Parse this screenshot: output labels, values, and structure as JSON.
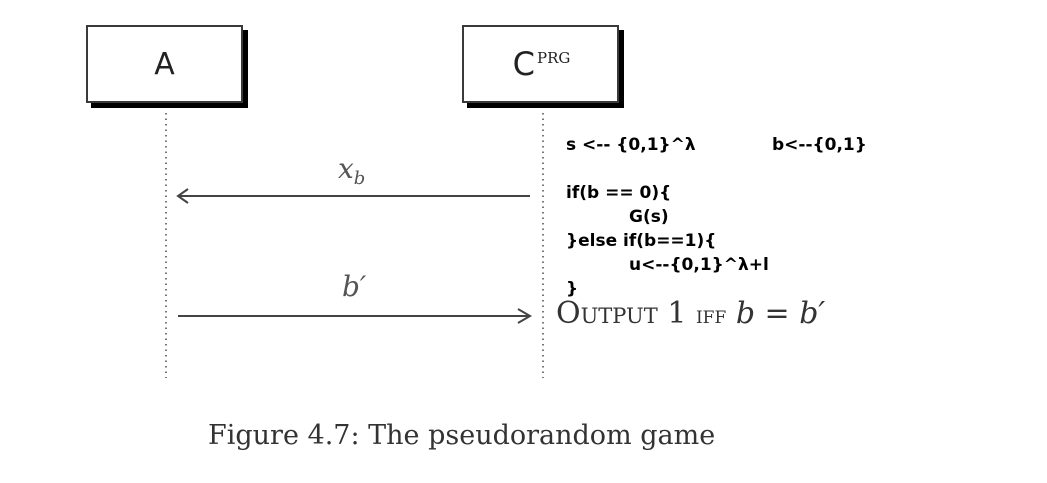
{
  "participants": {
    "left": {
      "label": "A"
    },
    "right": {
      "label": "C",
      "superscript": "PRG"
    }
  },
  "messages": {
    "first": {
      "var": "x",
      "sub": "b"
    },
    "second": {
      "label": "b′"
    }
  },
  "code": {
    "line1a": "s <-- {0,1}^λ",
    "line1b": "b<--{0,1}",
    "line2": "if(b == 0){",
    "line3": "G(s)",
    "line4": "}else if(b==1){",
    "line5": "u<--{0,1}^λ+l",
    "line6": "}"
  },
  "output": {
    "prefix": "Output",
    "value": "1",
    "iff": "iff",
    "condition": "b = b′"
  },
  "caption": "Figure 4.7: The pseudorandom game"
}
